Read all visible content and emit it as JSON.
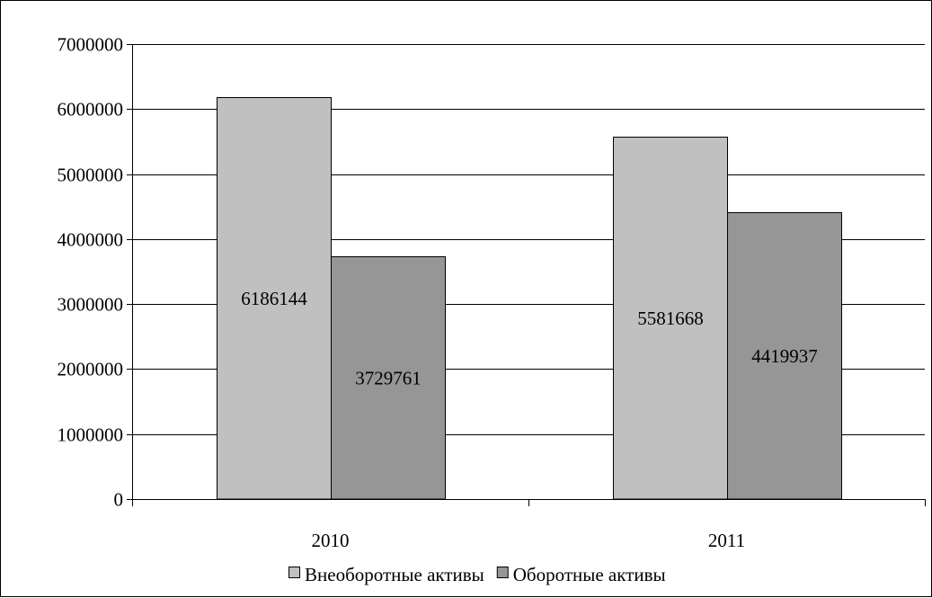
{
  "chart_data": {
    "type": "bar",
    "categories": [
      "2010",
      "2011"
    ],
    "series": [
      {
        "name": "Внеоборотные активы",
        "values": [
          6186144,
          5581668
        ],
        "color": "#c0c0c0"
      },
      {
        "name": "Оборотные активы",
        "values": [
          3729761,
          4419937
        ],
        "color": "#969696"
      }
    ],
    "data_labels": [
      [
        "6186144",
        "5581668"
      ],
      [
        "3729761",
        "4419937"
      ]
    ],
    "ylim": [
      0,
      7000000
    ],
    "yticks": [
      0,
      1000000,
      2000000,
      3000000,
      4000000,
      5000000,
      6000000,
      7000000
    ],
    "ytick_labels": [
      "0",
      "1000000",
      "2000000",
      "3000000",
      "4000000",
      "5000000",
      "6000000",
      "7000000"
    ],
    "grid": true,
    "legend": "bottom",
    "title": "",
    "xlabel": "",
    "ylabel": ""
  }
}
